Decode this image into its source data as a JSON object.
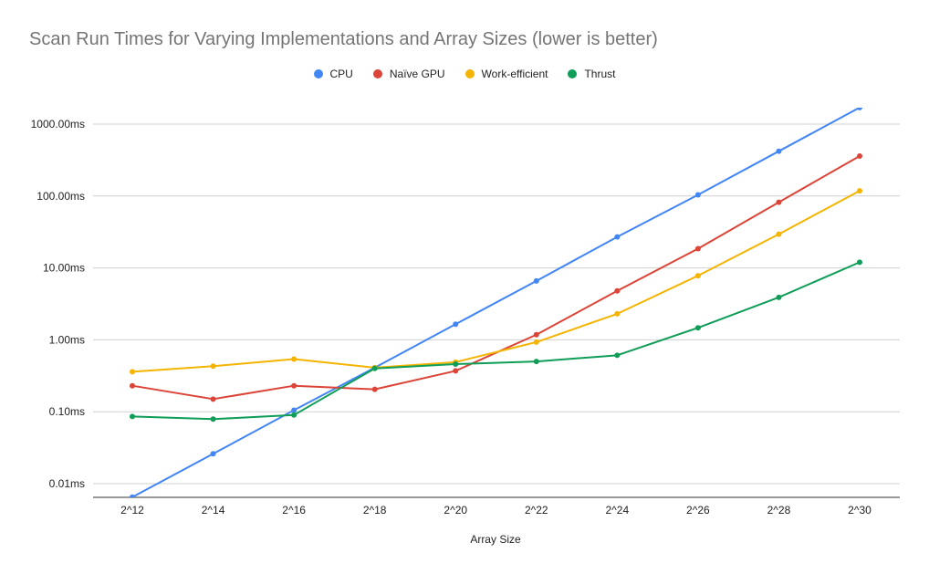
{
  "chart_data": {
    "type": "line",
    "title": "Scan Run Times for Varying Implementations and Array Sizes (lower is better)",
    "xlabel": "Array Size",
    "ylabel": "",
    "y_scale": "log",
    "ylim": [
      0.005,
      1800
    ],
    "y_ticks": [
      0.01,
      0.1,
      1,
      10,
      100,
      1000
    ],
    "y_tick_labels": [
      "0.01ms",
      "0.10ms",
      "1.00ms",
      "10.00ms",
      "100.00ms",
      "1000.00ms"
    ],
    "categories": [
      "2^12",
      "2^14",
      "2^16",
      "2^18",
      "2^20",
      "2^22",
      "2^24",
      "2^26",
      "2^28",
      "2^30"
    ],
    "grid": true,
    "legend_position": "top",
    "series": [
      {
        "name": "CPU",
        "color": "#4285f4",
        "values": [
          0.0065,
          0.026,
          0.105,
          0.41,
          1.65,
          6.6,
          27,
          104,
          420,
          1700
        ]
      },
      {
        "name": "Naïve GPU",
        "color": "#db4437",
        "values": [
          0.23,
          0.15,
          0.23,
          0.205,
          0.37,
          1.18,
          4.8,
          18.5,
          82,
          360
        ]
      },
      {
        "name": "Work-efficient",
        "color": "#f4b400",
        "values": [
          0.36,
          0.43,
          0.54,
          0.41,
          0.49,
          0.93,
          2.3,
          7.8,
          29.5,
          118
        ]
      },
      {
        "name": "Thrust",
        "color": "#0f9d58",
        "values": [
          0.086,
          0.079,
          0.09,
          0.4,
          0.46,
          0.5,
          0.61,
          1.47,
          3.9,
          12
        ]
      }
    ]
  }
}
